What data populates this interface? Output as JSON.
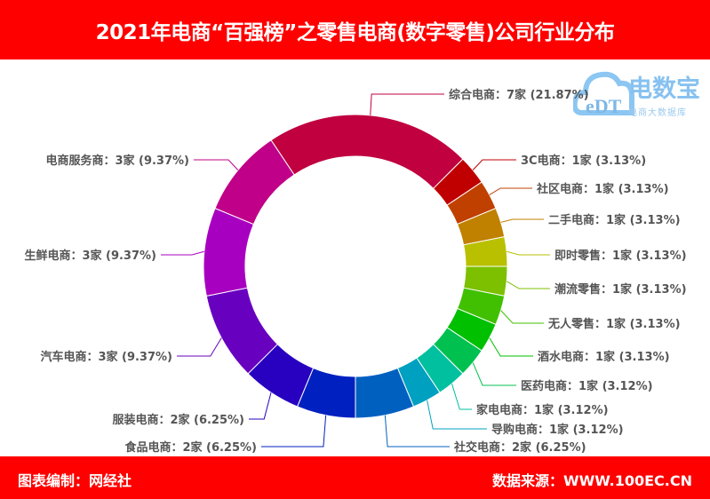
{
  "header": {
    "title": "2021年电商“百强榜”之零售电商(数字零售)公司行业分布"
  },
  "footer": {
    "left": "图表编制：网经社",
    "right": "数据来源：WWW.100EC.CN"
  },
  "logo": {
    "name": "电数宝",
    "subtitle": "电商大数据库",
    "mark": "eDT"
  },
  "chart_data": {
    "type": "pie",
    "variant": "donut",
    "title": "2021年电商“百强榜”之零售电商(数字零售)公司行业分布",
    "unit": "家",
    "total": 32,
    "slices": [
      {
        "name": "综合电商",
        "value": 7,
        "percent": "21.87%",
        "label": "综合电商：7家 (21.87%)",
        "color": "#c0003f"
      },
      {
        "name": "3C电商",
        "value": 1,
        "percent": "3.13%",
        "label": "3C电商：1家 (3.13%)",
        "color": "#c00000"
      },
      {
        "name": "社区电商",
        "value": 1,
        "percent": "3.13%",
        "label": "社区电商：1家 (3.13%)",
        "color": "#c04000"
      },
      {
        "name": "二手电商",
        "value": 1,
        "percent": "3.13%",
        "label": "二手电商：1家 (3.13%)",
        "color": "#c08000"
      },
      {
        "name": "即时零售",
        "value": 1,
        "percent": "3.13%",
        "label": "即时零售：1家 (3.13%)",
        "color": "#b8c000"
      },
      {
        "name": "潮流零售",
        "value": 1,
        "percent": "3.13%",
        "label": "潮流零售：1家 (3.13%)",
        "color": "#7cc000"
      },
      {
        "name": "无人零售",
        "value": 1,
        "percent": "3.13%",
        "label": "无人零售：1家 (3.13%)",
        "color": "#40c000"
      },
      {
        "name": "酒水电商",
        "value": 1,
        "percent": "3.13%",
        "label": "酒水电商：1家 (3.13%)",
        "color": "#00c000"
      },
      {
        "name": "医药电商",
        "value": 1,
        "percent": "3.12%",
        "label": "医药电商：1家 (3.12%)",
        "color": "#00c050"
      },
      {
        "name": "家电电商",
        "value": 1,
        "percent": "3.12%",
        "label": "家电电商：1家 (3.12%)",
        "color": "#00c0a0"
      },
      {
        "name": "导购电商",
        "value": 1,
        "percent": "3.12%",
        "label": "导购电商：1家 (3.12%)",
        "color": "#00a0c0"
      },
      {
        "name": "社交电商",
        "value": 2,
        "percent": "6.25%",
        "label": "社交电商：2家 (6.25%)",
        "color": "#0060c0"
      },
      {
        "name": "食品电商",
        "value": 2,
        "percent": "6.25%",
        "label": "食品电商：2家 (6.25%)",
        "color": "#0020c0"
      },
      {
        "name": "服装电商",
        "value": 2,
        "percent": "6.25%",
        "label": "服装电商：2家 (6.25%)",
        "color": "#2800c0"
      },
      {
        "name": "汽车电商",
        "value": 3,
        "percent": "9.37%",
        "label": "汽车电商：3家 (9.37%)",
        "color": "#6800c0"
      },
      {
        "name": "生鲜电商",
        "value": 3,
        "percent": "9.37%",
        "label": "生鲜电商：3家 (9.37%)",
        "color": "#a800c0"
      },
      {
        "name": "电商服务商",
        "value": 3,
        "percent": "9.37%",
        "label": "电商服务商：3家 (9.37%)",
        "color": "#c00088"
      }
    ]
  }
}
